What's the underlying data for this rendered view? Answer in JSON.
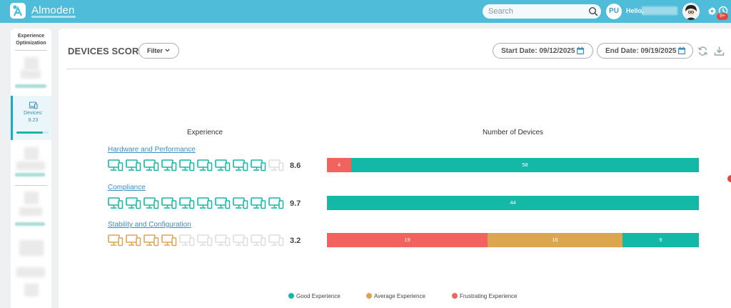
{
  "app": {
    "brand": "Almoden"
  },
  "topbar": {
    "search_placeholder": "Search",
    "user_initials": "PU",
    "greeting": "Hello,",
    "notification_badge": "9+"
  },
  "sidebar": {
    "title": "Experience Optimization",
    "active_item": {
      "label": "Devices:",
      "value": "8.23",
      "progress_fraction": 0.82
    }
  },
  "page": {
    "title": "DEVICES SCORE",
    "filter_label": "Filter",
    "start_date": "Start Date: 09/12/2025",
    "end_date": "End Date: 09/19/2025"
  },
  "columns": {
    "experience": "Experience",
    "number_of_devices": "Number of Devices"
  },
  "colors": {
    "good": "#14b8a6",
    "average": "#dca550",
    "frustrating": "#f2635f",
    "empty": "#dddddd",
    "accent": "#4fbcd9"
  },
  "rows": [
    {
      "label": "Hardware and Performance",
      "score": "8.6",
      "icons": [
        "good",
        "good",
        "good",
        "good",
        "good",
        "good",
        "good",
        "good",
        "good",
        "empty"
      ],
      "segments": [
        {
          "kind": "frustrating",
          "value": 4
        },
        {
          "kind": "good",
          "value": 58
        }
      ]
    },
    {
      "label": "Compliance",
      "score": "9.7",
      "icons": [
        "good",
        "good",
        "good",
        "good",
        "good",
        "good",
        "good",
        "good",
        "good",
        "good"
      ],
      "segments": [
        {
          "kind": "good",
          "value": 44
        }
      ]
    },
    {
      "label": "Stability and Configuration",
      "score": "3.2",
      "icons": [
        "average",
        "average",
        "average",
        "average",
        "empty",
        "empty",
        "empty",
        "empty",
        "empty",
        "empty"
      ],
      "segments": [
        {
          "kind": "frustrating",
          "value": 19
        },
        {
          "kind": "average",
          "value": 16
        },
        {
          "kind": "good",
          "value": 9
        }
      ]
    }
  ],
  "legend": [
    {
      "kind": "good",
      "label": "Good Experience"
    },
    {
      "kind": "average",
      "label": "Average Experience"
    },
    {
      "kind": "frustrating",
      "label": "Frustrating Experience"
    }
  ]
}
